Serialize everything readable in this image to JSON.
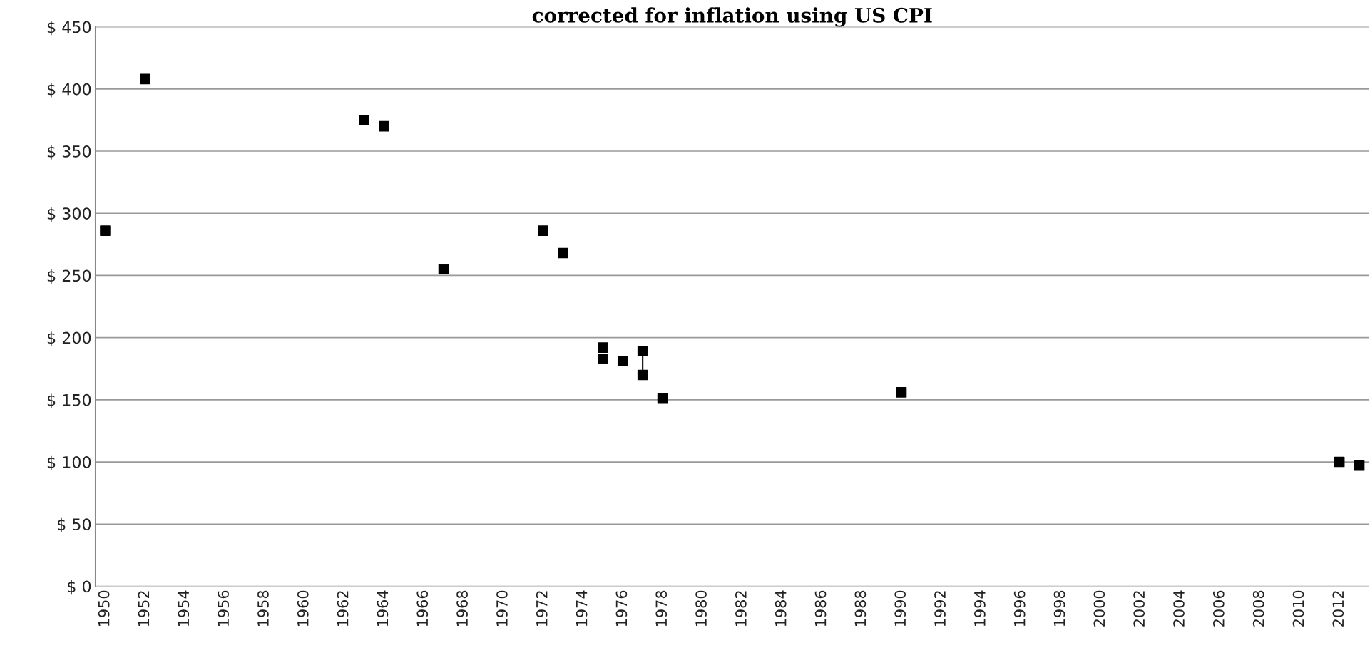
{
  "chart_data": {
    "type": "scatter",
    "title": "corrected for inflation using US CPI",
    "series": [
      {
        "color": "#000000",
        "marker": "square",
        "x": [
          1950,
          1952,
          1963,
          1964,
          1967,
          1972,
          1973,
          1975,
          1975,
          1976,
          1977,
          1977,
          1978,
          1990,
          2012,
          2013
        ],
        "values": [
          286,
          408,
          375,
          370,
          255,
          286,
          268,
          192,
          183,
          181,
          189,
          170,
          151,
          156,
          100,
          97
        ]
      },
      {
        "type": "line",
        "color": "#000000",
        "marker": "none",
        "line_style": "solid",
        "x": [
          1977,
          1977
        ],
        "values": [
          189,
          170
        ]
      }
    ],
    "xlim": [
      1949.5,
      2013.5
    ],
    "xticks": [
      1950,
      1952,
      1954,
      1956,
      1958,
      1960,
      1962,
      1964,
      1966,
      1968,
      1970,
      1972,
      1974,
      1976,
      1978,
      1980,
      1982,
      1984,
      1986,
      1988,
      1990,
      1992,
      1994,
      1996,
      1998,
      2000,
      2002,
      2004,
      2006,
      2008,
      2010,
      2012
    ],
    "ylim": [
      0,
      450
    ],
    "yticks": [
      {
        "value": 0,
        "label": "$ 0"
      },
      {
        "value": 50,
        "label": "$ 50"
      },
      {
        "value": 100,
        "label": "$ 100"
      },
      {
        "value": 150,
        "label": "$ 150"
      },
      {
        "value": 200,
        "label": "$ 200"
      },
      {
        "value": 250,
        "label": "$ 250"
      },
      {
        "value": 300,
        "label": "$ 300"
      },
      {
        "value": 350,
        "label": "$ 350"
      },
      {
        "value": 400,
        "label": "$ 400"
      },
      {
        "value": 450,
        "label": "$ 450"
      }
    ],
    "grid": "y",
    "legend": false
  }
}
